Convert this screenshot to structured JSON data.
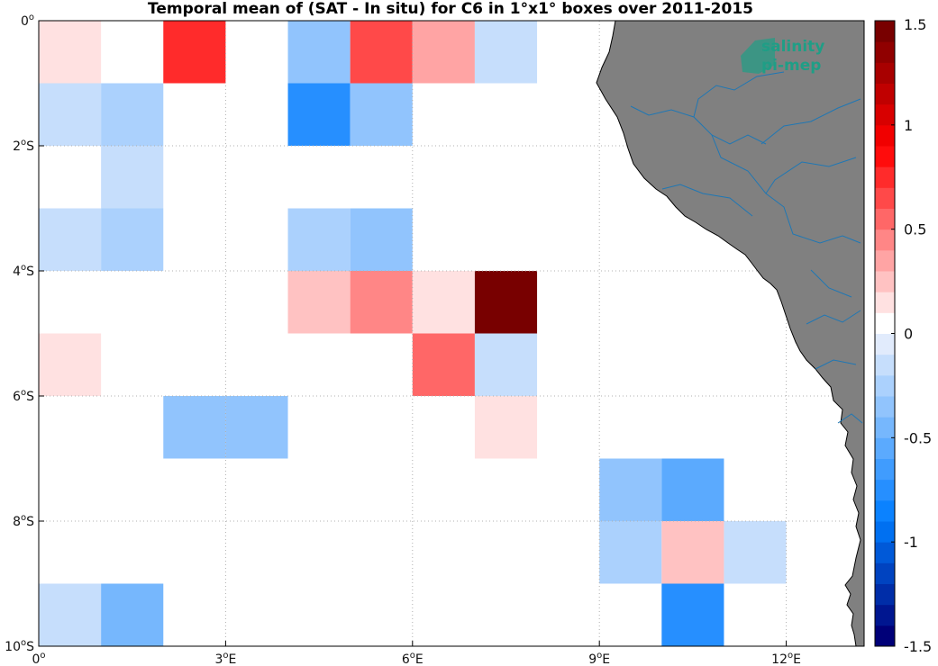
{
  "title": "Temporal mean of (SAT - In situ) for C6 in 1°x1° boxes over 2011-2015",
  "logo": {
    "line1": "salinity",
    "line2": "pi-mep",
    "color": "#1f9e86"
  },
  "colors": {
    "land": "#808080",
    "coast": "#000000",
    "river": "#1f77b4",
    "ocean": "#ffffff",
    "grid": "#b0b0b0"
  },
  "axes": {
    "x_ticks": [
      {
        "value": 0,
        "deg": "0",
        "hemi": ""
      },
      {
        "value": 3,
        "deg": "3",
        "hemi": "E"
      },
      {
        "value": 6,
        "deg": "6",
        "hemi": "E"
      },
      {
        "value": 9,
        "deg": "9",
        "hemi": "E"
      },
      {
        "value": 12,
        "deg": "12",
        "hemi": "E"
      }
    ],
    "y_ticks": [
      {
        "value": 0,
        "deg": "0",
        "hemi": ""
      },
      {
        "value": -2,
        "deg": "2",
        "hemi": "S"
      },
      {
        "value": -4,
        "deg": "4",
        "hemi": "S"
      },
      {
        "value": -6,
        "deg": "6",
        "hemi": "S"
      },
      {
        "value": -8,
        "deg": "8",
        "hemi": "S"
      },
      {
        "value": -10,
        "deg": "10",
        "hemi": "S"
      }
    ]
  },
  "chart_data": {
    "type": "heatmap",
    "title": "Temporal mean of (SAT - In situ) for C6 in 1°x1° boxes over 2011-2015",
    "xlim": [
      0,
      13.25
    ],
    "ylim": [
      -10,
      0
    ],
    "grid": true,
    "colorbar": {
      "range": [
        -1.5,
        1.5
      ],
      "step": 0.1,
      "ticks": [
        "1.5",
        "1",
        "0.5",
        "0",
        "-0.5",
        "-1",
        "-1.5"
      ],
      "placement": "right"
    },
    "cells": [
      {
        "lon": 0,
        "lat": 0,
        "value": 0.1
      },
      {
        "lon": 2,
        "lat": 0,
        "value": 0.7
      },
      {
        "lon": 4,
        "lat": 0,
        "value": -0.35
      },
      {
        "lon": 5,
        "lat": 0,
        "value": 0.6
      },
      {
        "lon": 6,
        "lat": 0,
        "value": 0.35
      },
      {
        "lon": 7,
        "lat": 0,
        "value": -0.2
      },
      {
        "lon": 0,
        "lat": -1,
        "value": -0.15
      },
      {
        "lon": 1,
        "lat": -1,
        "value": -0.25
      },
      {
        "lon": 4,
        "lat": -1,
        "value": -0.8
      },
      {
        "lon": 5,
        "lat": -1,
        "value": -0.35
      },
      {
        "lon": 1,
        "lat": -2,
        "value": -0.15
      },
      {
        "lon": 0,
        "lat": -3,
        "value": -0.15
      },
      {
        "lon": 1,
        "lat": -3,
        "value": -0.25
      },
      {
        "lon": 4,
        "lat": -3,
        "value": -0.25
      },
      {
        "lon": 5,
        "lat": -3,
        "value": -0.35
      },
      {
        "lon": 4,
        "lat": -4,
        "value": 0.25
      },
      {
        "lon": 5,
        "lat": -4,
        "value": 0.4
      },
      {
        "lon": 6,
        "lat": -4,
        "value": 0.1
      },
      {
        "lon": 7,
        "lat": -4,
        "value": 1.5
      },
      {
        "lon": 0,
        "lat": -5,
        "value": 0.1
      },
      {
        "lon": 6,
        "lat": -5,
        "value": 0.5
      },
      {
        "lon": 7,
        "lat": -5,
        "value": -0.15
      },
      {
        "lon": 2,
        "lat": -6,
        "value": -0.35
      },
      {
        "lon": 3,
        "lat": -6,
        "value": -0.35
      },
      {
        "lon": 7,
        "lat": -6,
        "value": 0.1
      },
      {
        "lon": 9,
        "lat": -7,
        "value": -0.35
      },
      {
        "lon": 10,
        "lat": -7,
        "value": -0.55
      },
      {
        "lon": 9,
        "lat": -8,
        "value": -0.25
      },
      {
        "lon": 10,
        "lat": -8,
        "value": 0.25
      },
      {
        "lon": 11,
        "lat": -8,
        "value": -0.15
      },
      {
        "lon": 0,
        "lat": -9,
        "value": -0.15
      },
      {
        "lon": 1,
        "lat": -9,
        "value": -0.45
      },
      {
        "lon": 10,
        "lat": -9,
        "value": -0.8
      }
    ]
  }
}
